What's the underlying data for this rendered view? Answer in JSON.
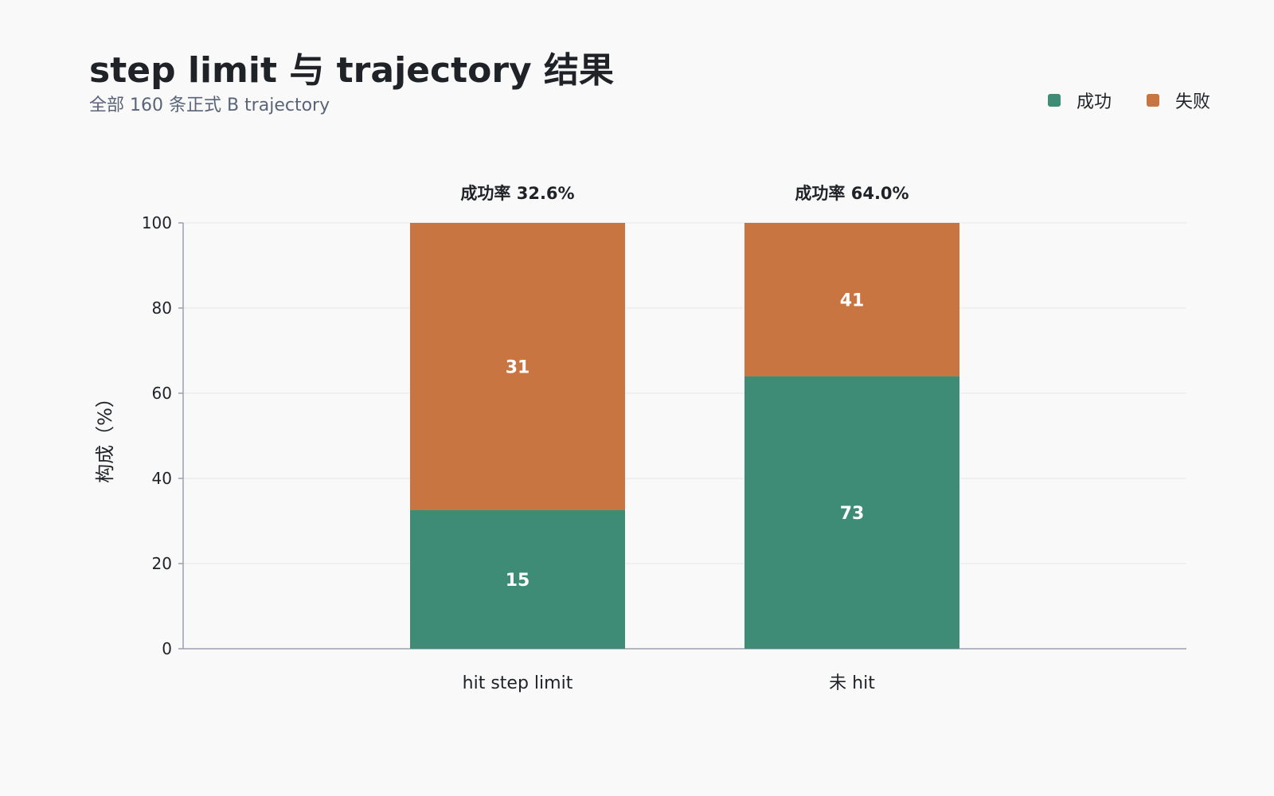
{
  "title": "step limit 与 trajectory 结果",
  "subtitle": "全部 160 条正式 B trajectory",
  "colors": {
    "success": "#3e8c76",
    "failure": "#c87541",
    "background": "#f9f9f9",
    "grid": "#e6e6e6",
    "axis": "#9aa0b0",
    "text": "#1f2328"
  },
  "legend": [
    {
      "label": "成功",
      "color": "#3e8c76"
    },
    {
      "label": "失败",
      "color": "#c87541"
    }
  ],
  "chart_data": {
    "type": "bar",
    "stacked": true,
    "categories": [
      "hit step limit",
      "未 hit"
    ],
    "series": [
      {
        "name": "成功",
        "percent": [
          32.6,
          64.0
        ],
        "labels": [
          "15",
          "73"
        ],
        "color": "#3e8c76"
      },
      {
        "name": "失败",
        "percent": [
          67.4,
          36.0
        ],
        "labels": [
          "31",
          "41"
        ],
        "color": "#c87541"
      }
    ],
    "annotations": [
      "成功率 32.6%",
      "成功率 64.0%"
    ],
    "ylabel": "构成（%）",
    "xlabel": "",
    "ylim": [
      0,
      100
    ],
    "yticks": [
      0,
      20,
      40,
      60,
      80,
      100
    ],
    "grid": true,
    "legend_position": "top-right"
  }
}
